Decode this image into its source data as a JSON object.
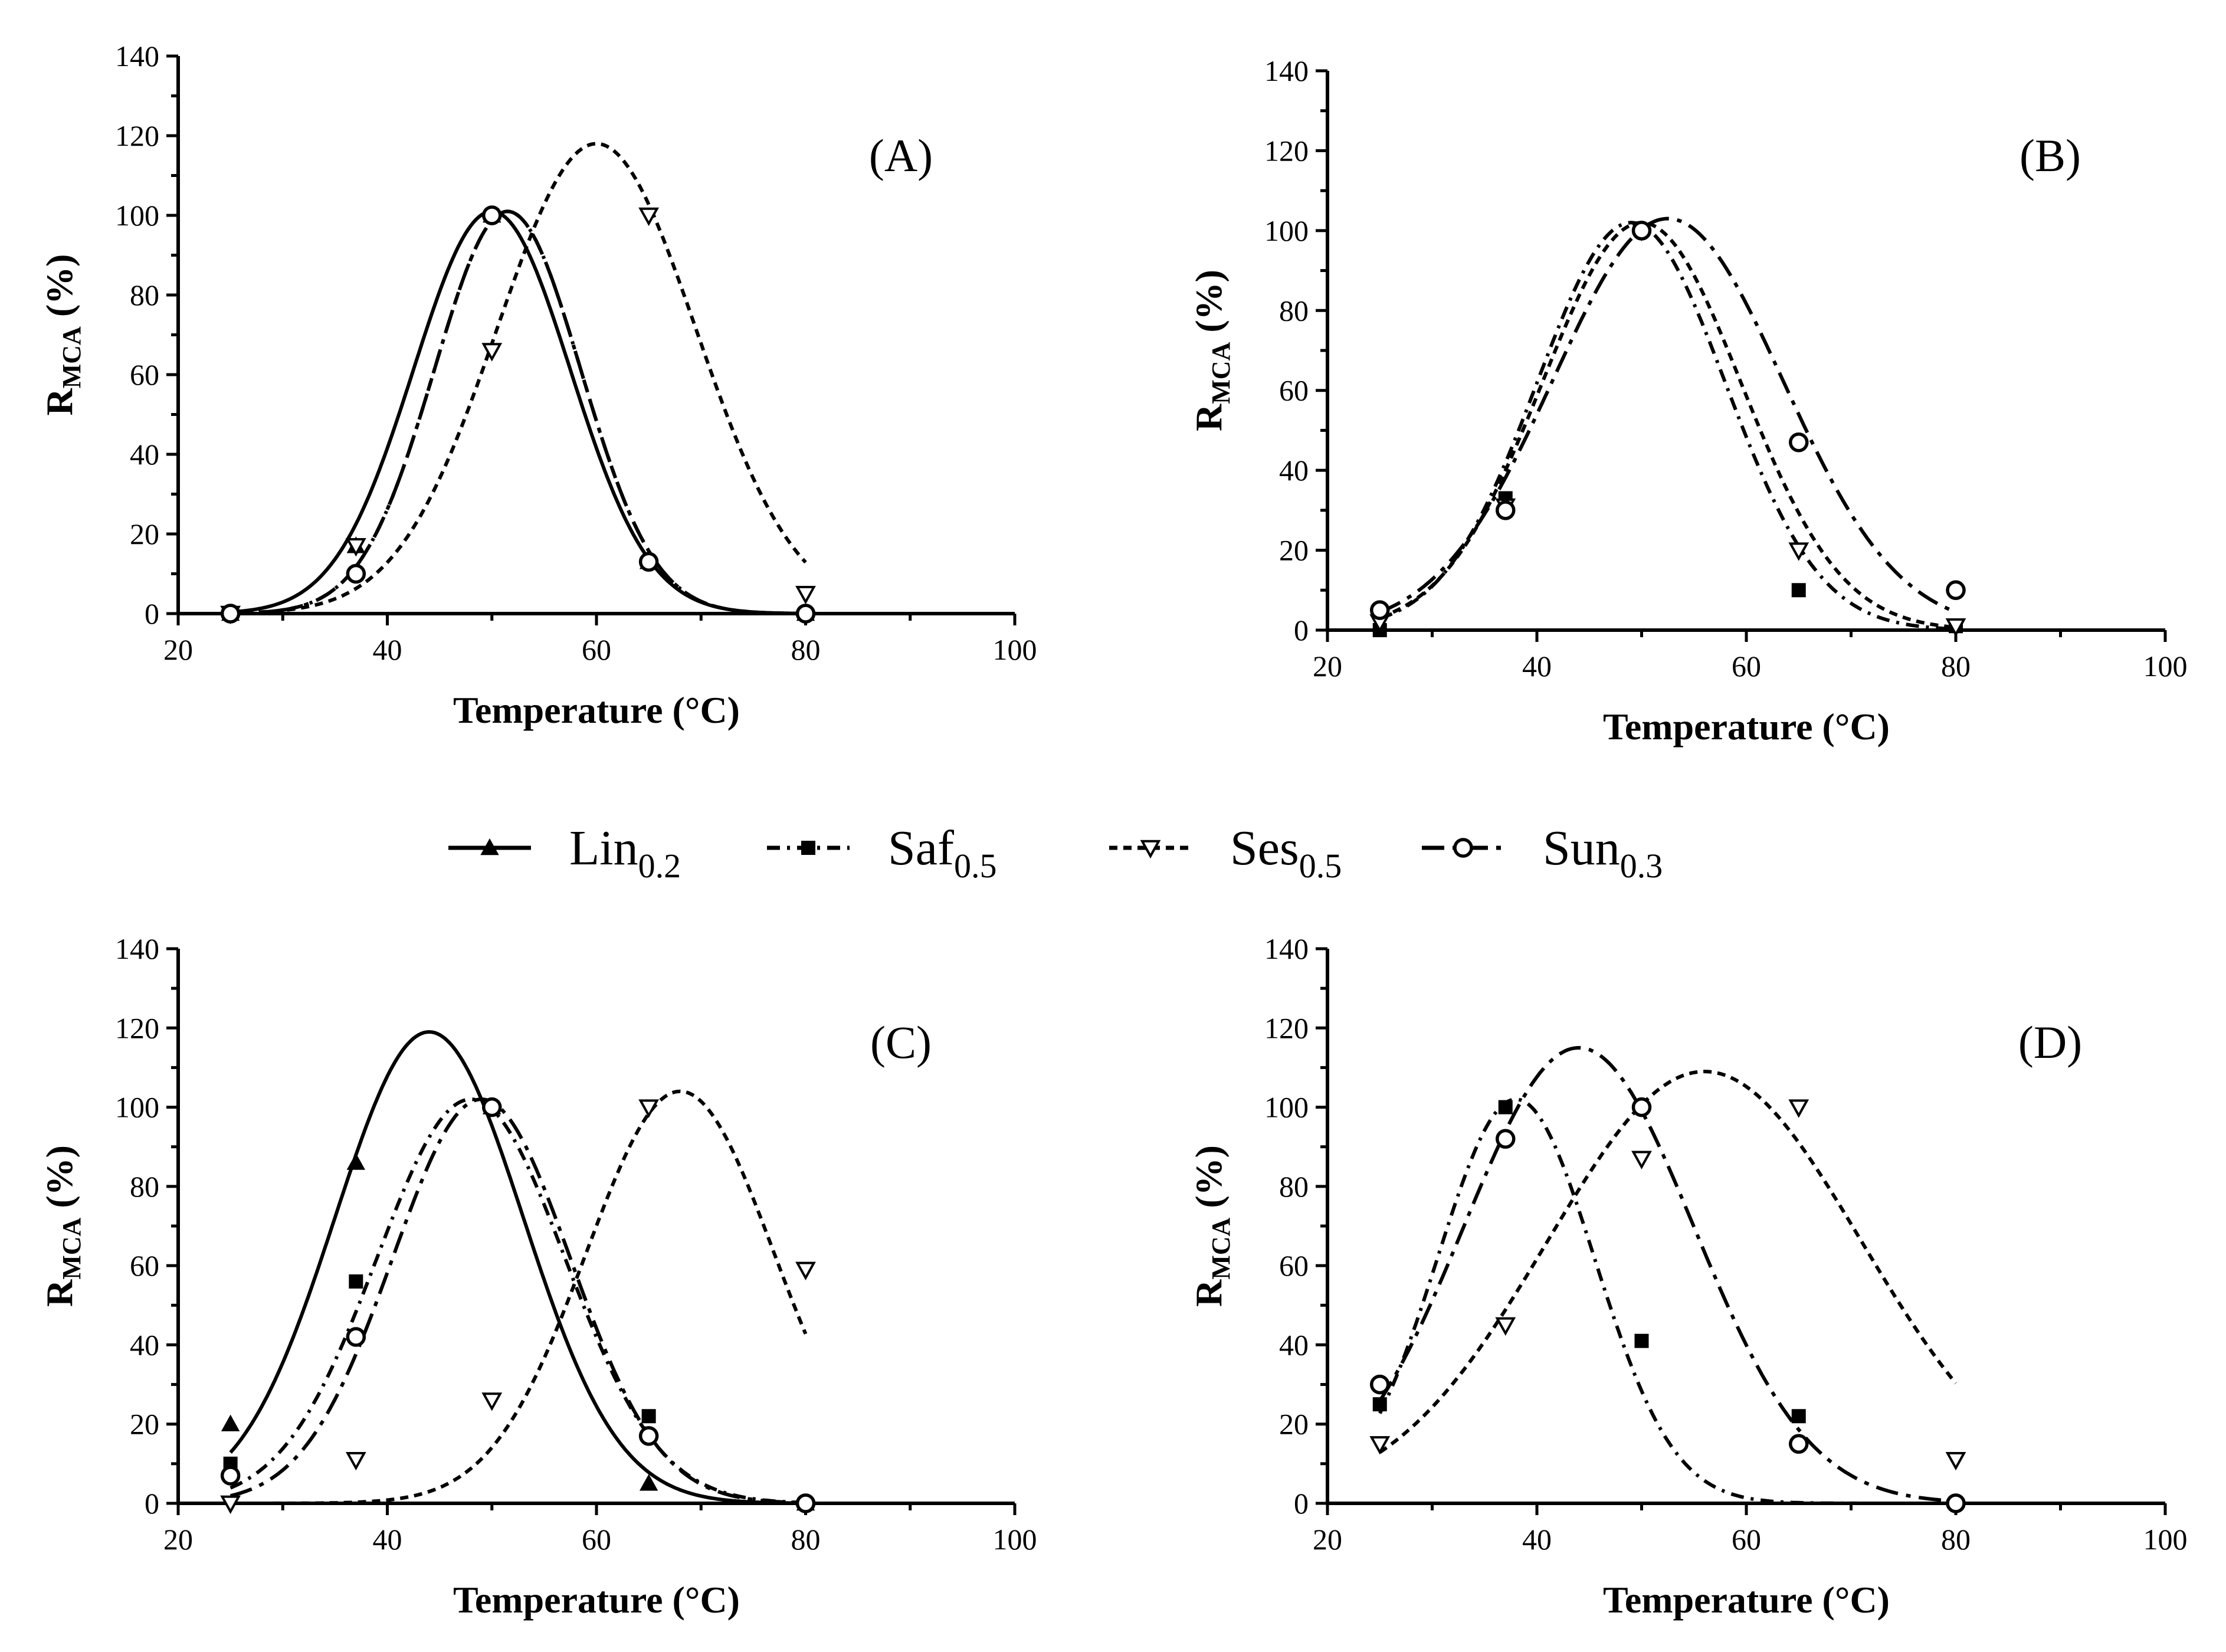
{
  "legend": [
    {
      "key": "lin",
      "name": "Lin",
      "sub": "0.2"
    },
    {
      "key": "saf",
      "name": "Saf",
      "sub": "0.5"
    },
    {
      "key": "ses",
      "name": "Ses",
      "sub": "0.5"
    },
    {
      "key": "sun",
      "name": "Sun",
      "sub": "0.3"
    }
  ],
  "series_style": {
    "lin": {
      "marker": "triangle-up-filled",
      "line": "solid"
    },
    "saf": {
      "marker": "square-filled",
      "line": "dash-dot"
    },
    "ses": {
      "marker": "triangle-down-open",
      "line": "short-dash"
    },
    "sun": {
      "marker": "circle-open",
      "line": "long-dash-dot"
    }
  },
  "chart_data": [
    {
      "type": "scatter",
      "panel_label": "(A)",
      "xlabel": "Temperature (°C)",
      "ylabel_main": "R",
      "ylabel_sub": "MCA",
      "ylabel_suffix": " (%)",
      "xlim": [
        20,
        100
      ],
      "ylim": [
        0,
        140
      ],
      "xticks": [
        20,
        40,
        60,
        80,
        100
      ],
      "yticks": [
        0,
        20,
        40,
        60,
        80,
        100,
        120,
        140
      ],
      "grid": false,
      "series": [
        {
          "key": "lin",
          "x": [
            25,
            37,
            50,
            65,
            80
          ],
          "y": [
            0,
            17,
            100,
            13,
            0
          ],
          "fit": {
            "peak_x": 50,
            "peak_y": 101,
            "sigma": 7.5
          }
        },
        {
          "key": "saf",
          "x": [
            25,
            37,
            50,
            65,
            80
          ],
          "y": [
            0,
            10,
            100,
            13,
            0
          ],
          "fit": {
            "peak_x": 51.5,
            "peak_y": 101,
            "sigma": 7
          }
        },
        {
          "key": "ses",
          "x": [
            25,
            37,
            50,
            65,
            80
          ],
          "y": [
            0,
            17,
            66,
            100,
            5
          ],
          "fit": {
            "peak_x": 60,
            "peak_y": 118,
            "sigma": 9.5
          }
        },
        {
          "key": "sun",
          "x": [
            25,
            37,
            50,
            65,
            80
          ],
          "y": [
            0,
            10,
            100,
            13,
            0
          ],
          "fit": {
            "peak_x": 51.5,
            "peak_y": 101,
            "sigma": 7
          }
        }
      ]
    },
    {
      "type": "scatter",
      "panel_label": "(B)",
      "xlabel": "Temperature (°C)",
      "ylabel_main": "R",
      "ylabel_sub": "MCA",
      "ylabel_suffix": " (%)",
      "xlim": [
        20,
        100
      ],
      "ylim": [
        0,
        140
      ],
      "xticks": [
        20,
        40,
        60,
        80,
        100
      ],
      "yticks": [
        0,
        20,
        40,
        60,
        80,
        100,
        120,
        140
      ],
      "grid": false,
      "series": [
        {
          "key": "saf",
          "x": [
            25,
            37,
            50,
            65,
            80
          ],
          "y": [
            0,
            33,
            100,
            10,
            1
          ],
          "fit": {
            "peak_x": 49,
            "peak_y": 102,
            "sigma": 9
          }
        },
        {
          "key": "ses",
          "x": [
            25,
            37,
            50,
            65,
            80
          ],
          "y": [
            2,
            31,
            100,
            20,
            1
          ],
          "fit": {
            "peak_x": 50,
            "peak_y": 102,
            "sigma": 9.5
          }
        },
        {
          "key": "sun",
          "x": [
            25,
            37,
            50,
            65,
            80
          ],
          "y": [
            5,
            30,
            100,
            47,
            10
          ],
          "fit": {
            "peak_x": 52.5,
            "peak_y": 103,
            "sigma": 11
          }
        }
      ]
    },
    {
      "type": "scatter",
      "panel_label": "(C)",
      "xlabel": "Temperature (°C)",
      "ylabel_main": "R",
      "ylabel_sub": "MCA",
      "ylabel_suffix": " (%)",
      "xlim": [
        20,
        100
      ],
      "ylim": [
        0,
        140
      ],
      "xticks": [
        20,
        40,
        60,
        80,
        100
      ],
      "yticks": [
        0,
        20,
        40,
        60,
        80,
        100,
        120,
        140
      ],
      "grid": false,
      "series": [
        {
          "key": "lin",
          "x": [
            25,
            37,
            50,
            65,
            80
          ],
          "y": [
            20,
            86,
            100,
            5,
            0
          ],
          "fit": {
            "peak_x": 44,
            "peak_y": 119,
            "sigma": 9
          }
        },
        {
          "key": "saf",
          "x": [
            25,
            37,
            50,
            65,
            80
          ],
          "y": [
            10,
            56,
            100,
            22,
            0
          ],
          "fit": {
            "peak_x": 48,
            "peak_y": 102,
            "sigma": 9
          }
        },
        {
          "key": "ses",
          "x": [
            25,
            37,
            50,
            65,
            80
          ],
          "y": [
            0,
            11,
            26,
            100,
            59
          ],
          "fit": {
            "peak_x": 68,
            "peak_y": 104,
            "sigma": 9
          }
        },
        {
          "key": "sun",
          "x": [
            25,
            37,
            50,
            65,
            80
          ],
          "y": [
            7,
            42,
            100,
            17,
            0
          ],
          "fit": {
            "peak_x": 49,
            "peak_y": 102,
            "sigma": 8.5
          }
        }
      ]
    },
    {
      "type": "scatter",
      "panel_label": "(D)",
      "xlabel": "Temperature (°C)",
      "ylabel_main": "R",
      "ylabel_sub": "MCA",
      "ylabel_suffix": " (%)",
      "xlim": [
        20,
        100
      ],
      "ylim": [
        0,
        140
      ],
      "xticks": [
        20,
        40,
        60,
        80,
        100
      ],
      "yticks": [
        0,
        20,
        40,
        60,
        80,
        100,
        120,
        140
      ],
      "grid": false,
      "series": [
        {
          "key": "saf",
          "x": [
            25,
            37,
            50,
            65,
            80
          ],
          "y": [
            25,
            100,
            41,
            22,
            0
          ],
          "fit": {
            "peak_x": 38,
            "peak_y": 102,
            "sigma": 7.5
          }
        },
        {
          "key": "ses",
          "x": [
            25,
            37,
            50,
            65,
            80
          ],
          "y": [
            15,
            45,
            87,
            100,
            11
          ],
          "fit": {
            "peak_x": 56,
            "peak_y": 109,
            "sigma": 15
          }
        },
        {
          "key": "sun",
          "x": [
            25,
            37,
            50,
            65,
            80
          ],
          "y": [
            30,
            92,
            100,
            15,
            0
          ],
          "fit": {
            "peak_x": 44,
            "peak_y": 115,
            "sigma": 11
          }
        }
      ]
    }
  ]
}
